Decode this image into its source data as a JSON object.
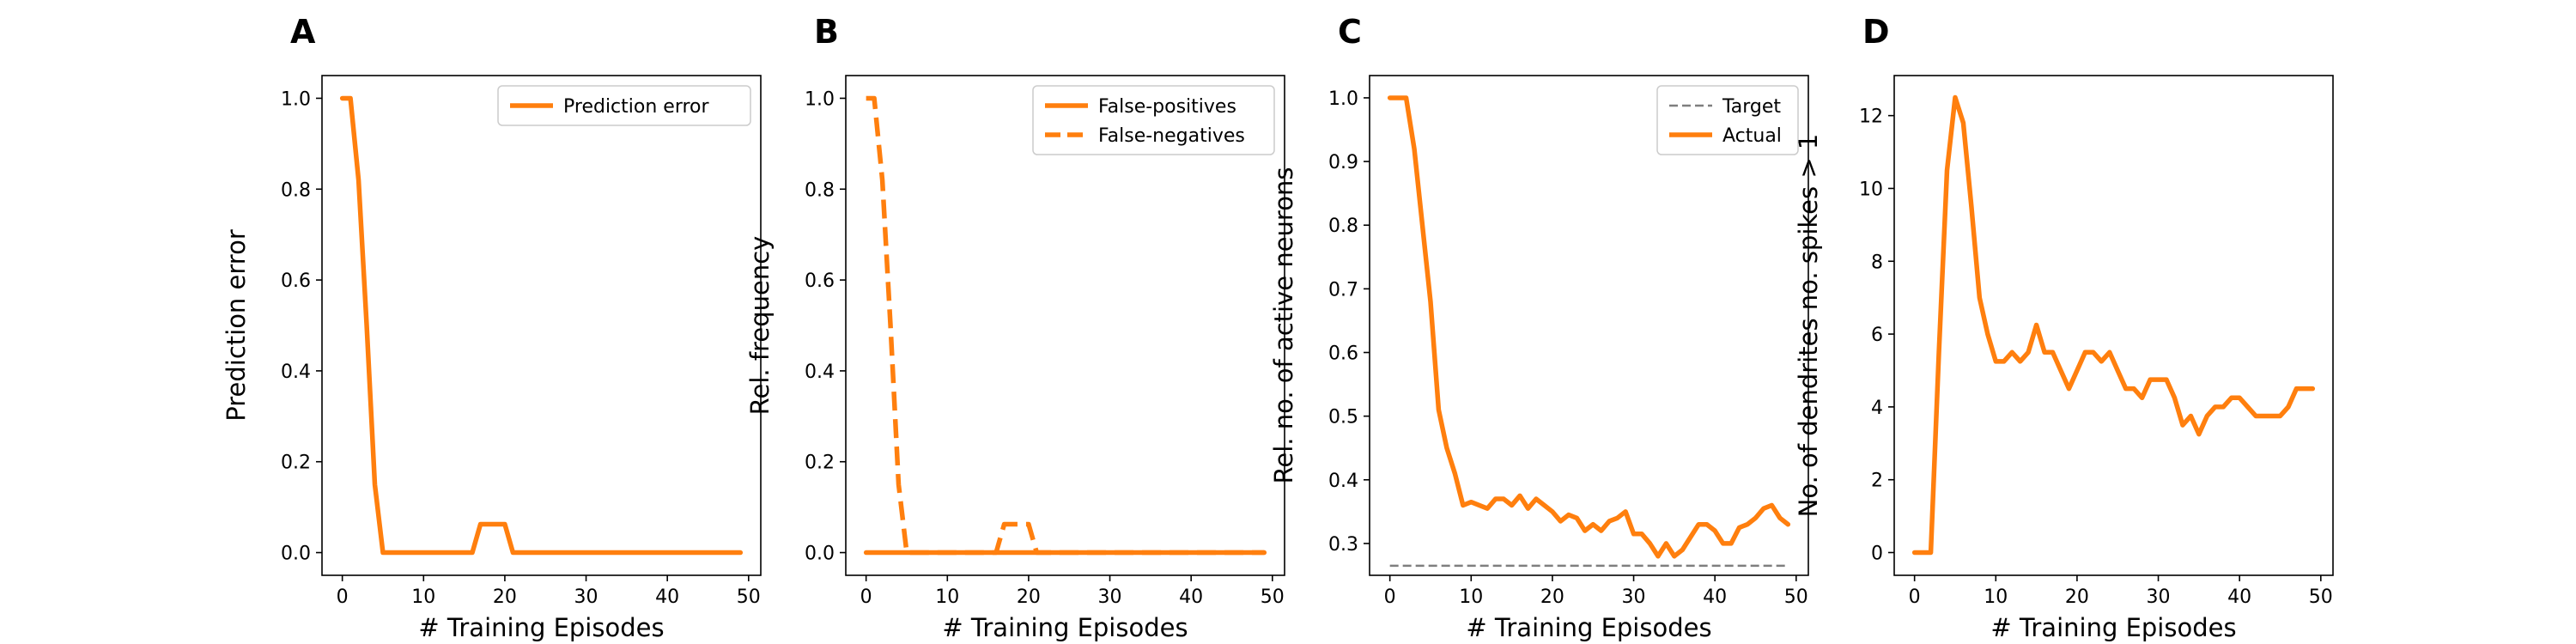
{
  "chart_data": [
    {
      "panel": "A",
      "type": "line",
      "xlabel": "# Training Episodes",
      "ylabel": "Prediction error",
      "xlim": [
        -2.5,
        51.5
      ],
      "ylim": [
        -0.05,
        1.05
      ],
      "xticks": [
        0,
        10,
        20,
        30,
        40,
        50
      ],
      "yticks": [
        0.0,
        0.2,
        0.4,
        0.6,
        0.8,
        1.0
      ],
      "ytick_format": 1,
      "grid": false,
      "legend": "top-right",
      "series": [
        {
          "name": "Prediction error",
          "color": "#ff7f0e",
          "dash": "solid",
          "x": [
            0,
            1,
            2,
            3,
            4,
            5,
            6,
            7,
            8,
            9,
            10,
            11,
            12,
            13,
            14,
            15,
            16,
            17,
            18,
            19,
            20,
            21,
            22,
            23,
            24,
            25,
            26,
            27,
            28,
            29,
            30,
            31,
            32,
            33,
            34,
            35,
            36,
            37,
            38,
            39,
            40,
            41,
            42,
            43,
            44,
            45,
            46,
            47,
            48,
            49
          ],
          "y": [
            1.0,
            1.0,
            0.82,
            0.5,
            0.15,
            0.0,
            0.0,
            0.0,
            0.0,
            0.0,
            0.0,
            0.0,
            0.0,
            0.0,
            0.0,
            0.0,
            0.0,
            0.0625,
            0.0625,
            0.0625,
            0.0625,
            0.0,
            0.0,
            0.0,
            0.0,
            0.0,
            0.0,
            0.0,
            0.0,
            0.0,
            0.0,
            0.0,
            0.0,
            0.0,
            0.0,
            0.0,
            0.0,
            0.0,
            0.0,
            0.0,
            0.0,
            0.0,
            0.0,
            0.0,
            0.0,
            0.0,
            0.0,
            0.0,
            0.0,
            0.0
          ]
        }
      ]
    },
    {
      "panel": "B",
      "type": "line",
      "xlabel": "# Training Episodes",
      "ylabel": "Rel. frequency",
      "xlim": [
        -2.5,
        51.5
      ],
      "ylim": [
        -0.05,
        1.05
      ],
      "xticks": [
        0,
        10,
        20,
        30,
        40,
        50
      ],
      "yticks": [
        0.0,
        0.2,
        0.4,
        0.6,
        0.8,
        1.0
      ],
      "ytick_format": 1,
      "grid": false,
      "legend": "top-right",
      "series": [
        {
          "name": "False-positives",
          "color": "#ff7f0e",
          "dash": "solid",
          "x": [
            0,
            49
          ],
          "y": [
            0.0,
            0.0
          ]
        },
        {
          "name": "False-negatives",
          "color": "#ff7f0e",
          "dash": "dashed",
          "x": [
            0,
            1,
            2,
            3,
            4,
            5,
            6,
            7,
            8,
            9,
            10,
            11,
            12,
            13,
            14,
            15,
            16,
            17,
            18,
            19,
            20,
            21,
            22,
            23,
            24,
            25,
            26,
            27,
            28,
            29,
            30,
            31,
            32,
            33,
            34,
            35,
            36,
            37,
            38,
            39,
            40,
            41,
            42,
            43,
            44,
            45,
            46,
            47,
            48,
            49
          ],
          "y": [
            1.0,
            1.0,
            0.82,
            0.5,
            0.15,
            0.0,
            0.0,
            0.0,
            0.0,
            0.0,
            0.0,
            0.0,
            0.0,
            0.0,
            0.0,
            0.0,
            0.0,
            0.0625,
            0.0625,
            0.0625,
            0.0625,
            0.0,
            0.0,
            0.0,
            0.0,
            0.0,
            0.0,
            0.0,
            0.0,
            0.0,
            0.0,
            0.0,
            0.0,
            0.0,
            0.0,
            0.0,
            0.0,
            0.0,
            0.0,
            0.0,
            0.0,
            0.0,
            0.0,
            0.0,
            0.0,
            0.0,
            0.0,
            0.0,
            0.0,
            0.0
          ]
        }
      ]
    },
    {
      "panel": "C",
      "type": "line",
      "xlabel": "# Training Episodes",
      "ylabel": "Rel. no. of active neurons",
      "xlim": [
        -2.5,
        51.5
      ],
      "ylim": [
        0.25,
        1.035
      ],
      "xticks": [
        0,
        10,
        20,
        30,
        40,
        50
      ],
      "yticks": [
        0.3,
        0.4,
        0.5,
        0.6,
        0.7,
        0.8,
        0.9,
        1.0
      ],
      "ytick_format": 1,
      "grid": false,
      "legend": "top-right",
      "series": [
        {
          "name": "Target",
          "color": "#7f7f7f",
          "dash": "dashed",
          "x": [
            0,
            49
          ],
          "y": [
            0.265,
            0.265
          ]
        },
        {
          "name": "Actual",
          "color": "#ff7f0e",
          "dash": "solid",
          "x": [
            0,
            1,
            2,
            3,
            4,
            5,
            6,
            7,
            8,
            9,
            10,
            11,
            12,
            13,
            14,
            15,
            16,
            17,
            18,
            19,
            20,
            21,
            22,
            23,
            24,
            25,
            26,
            27,
            28,
            29,
            30,
            31,
            32,
            33,
            34,
            35,
            36,
            37,
            38,
            39,
            40,
            41,
            42,
            43,
            44,
            45,
            46,
            47,
            48,
            49
          ],
          "y": [
            1.0,
            1.0,
            1.0,
            0.92,
            0.8,
            0.68,
            0.51,
            0.45,
            0.41,
            0.36,
            0.365,
            0.36,
            0.355,
            0.37,
            0.37,
            0.36,
            0.375,
            0.355,
            0.37,
            0.36,
            0.35,
            0.335,
            0.345,
            0.34,
            0.32,
            0.33,
            0.32,
            0.335,
            0.34,
            0.35,
            0.315,
            0.315,
            0.3,
            0.28,
            0.3,
            0.28,
            0.29,
            0.31,
            0.33,
            0.33,
            0.32,
            0.3,
            0.3,
            0.325,
            0.33,
            0.34,
            0.355,
            0.36,
            0.34,
            0.33
          ]
        }
      ]
    },
    {
      "panel": "D",
      "type": "line",
      "xlabel": "# Training Episodes",
      "ylabel": "No. of dendrites no. spikes > 1",
      "xlim": [
        -2.5,
        51.5
      ],
      "ylim": [
        -0.625,
        13.1
      ],
      "xticks": [
        0,
        10,
        20,
        30,
        40,
        50
      ],
      "yticks": [
        0,
        2,
        4,
        6,
        8,
        10,
        12
      ],
      "ytick_format": 0,
      "grid": false,
      "legend": "none",
      "series": [
        {
          "name": "",
          "color": "#ff7f0e",
          "dash": "solid",
          "x": [
            0,
            1,
            2,
            3,
            4,
            5,
            6,
            7,
            8,
            9,
            10,
            11,
            12,
            13,
            14,
            15,
            16,
            17,
            18,
            19,
            20,
            21,
            22,
            23,
            24,
            25,
            26,
            27,
            28,
            29,
            30,
            31,
            32,
            33,
            34,
            35,
            36,
            37,
            38,
            39,
            40,
            41,
            42,
            43,
            44,
            45,
            46,
            47,
            48,
            49
          ],
          "y": [
            0,
            0,
            0,
            5.5,
            10.5,
            12.5,
            11.8,
            9.5,
            7.0,
            6.0,
            5.25,
            5.25,
            5.5,
            5.25,
            5.5,
            6.25,
            5.5,
            5.5,
            5.0,
            4.5,
            5.0,
            5.5,
            5.5,
            5.25,
            5.5,
            5.0,
            4.5,
            4.5,
            4.25,
            4.75,
            4.75,
            4.75,
            4.25,
            3.5,
            3.75,
            3.25,
            3.75,
            4.0,
            4.0,
            4.25,
            4.25,
            4.0,
            3.75,
            3.75,
            3.75,
            3.75,
            4.0,
            4.5,
            4.5,
            4.5
          ]
        }
      ]
    }
  ]
}
